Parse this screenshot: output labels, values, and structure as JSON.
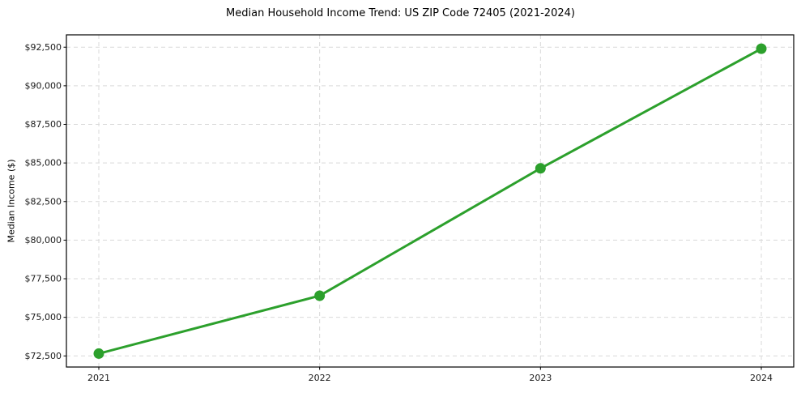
{
  "chart_data": {
    "type": "line",
    "title": "Median Household Income Trend: US ZIP Code 72405 (2021-2024)",
    "xlabel": "",
    "ylabel": "Median Income ($)",
    "x": [
      2021,
      2022,
      2023,
      2024
    ],
    "values": [
      72650,
      76400,
      84650,
      92400
    ],
    "x_tick_labels": [
      "2021",
      "2022",
      "2023",
      "2024"
    ],
    "y_ticks": [
      72500,
      75000,
      77500,
      80000,
      82500,
      85000,
      87500,
      90000,
      92500
    ],
    "y_tick_labels": [
      "$72,500",
      "$75,000",
      "$77,500",
      "$80,000",
      "$82,500",
      "$85,000",
      "$87,500",
      "$90,000",
      "$92,500"
    ],
    "ylim": [
      71780,
      93300
    ],
    "grid": true,
    "grid_style": "dashed",
    "legend_position": "none",
    "line_color": "#2ca02c",
    "marker": "circle",
    "marker_color": "#2ca02c",
    "marker_radius": 6.5,
    "grid_color": "#d9d9d9",
    "spine_color": "#000000",
    "tick_color": "#000000",
    "text_color": "#1a1a1a",
    "background_color": "#ffffff"
  }
}
